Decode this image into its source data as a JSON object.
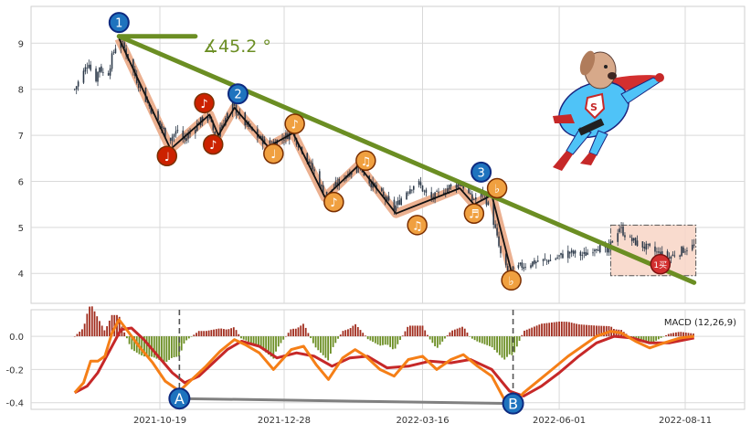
{
  "chart_data": [
    {
      "type": "candlestick",
      "panel": "price",
      "title": "",
      "xlabel": "",
      "ylabel": "",
      "ylim": [
        3.35,
        9.8
      ],
      "yticks": [
        4,
        5,
        6,
        7,
        8,
        9
      ],
      "grid": true,
      "candle_color": "#2d3a4a",
      "price_path": [
        [
          "2021-09-01",
          8.0
        ],
        [
          "2021-09-05",
          8.3
        ],
        [
          "2021-09-09",
          8.6
        ],
        [
          "2021-09-12",
          8.1
        ],
        [
          "2021-09-15",
          8.5
        ],
        [
          "2021-09-19",
          8.2
        ],
        [
          "2021-09-22",
          8.7
        ],
        [
          "2021-09-26",
          9.15
        ],
        [
          "2021-10-01",
          8.7
        ],
        [
          "2021-10-06",
          8.2
        ],
        [
          "2021-10-12",
          7.7
        ],
        [
          "2021-10-18",
          7.3
        ],
        [
          "2021-10-24",
          6.9
        ],
        [
          "2021-10-29",
          7.1
        ],
        [
          "2021-11-02",
          6.9
        ],
        [
          "2021-11-08",
          7.2
        ],
        [
          "2021-11-15",
          7.45
        ],
        [
          "2021-11-19",
          7.0
        ],
        [
          "2021-11-24",
          7.3
        ],
        [
          "2021-11-29",
          7.65
        ],
        [
          "2021-12-05",
          7.3
        ],
        [
          "2021-12-12",
          7.0
        ],
        [
          "2021-12-19",
          6.8
        ],
        [
          "2021-12-25",
          6.9
        ],
        [
          "2022-01-01",
          7.05
        ],
        [
          "2022-01-07",
          6.7
        ],
        [
          "2022-01-14",
          6.2
        ],
        [
          "2022-01-20",
          5.7
        ],
        [
          "2022-01-26",
          5.9
        ],
        [
          "2022-02-01",
          6.15
        ],
        [
          "2022-02-08",
          6.35
        ],
        [
          "2022-02-14",
          6.0
        ],
        [
          "2022-02-21",
          5.7
        ],
        [
          "2022-02-28",
          5.4
        ],
        [
          "2022-03-06",
          5.75
        ],
        [
          "2022-03-13",
          6.0
        ],
        [
          "2022-03-20",
          5.6
        ],
        [
          "2022-03-26",
          5.75
        ],
        [
          "2022-04-01",
          5.9
        ],
        [
          "2022-04-07",
          5.95
        ],
        [
          "2022-04-13",
          5.6
        ],
        [
          "2022-04-19",
          5.75
        ],
        [
          "2022-04-24",
          5.3
        ],
        [
          "2022-04-29",
          4.4
        ],
        [
          "2022-05-03",
          4.0
        ],
        [
          "2022-05-10",
          4.15
        ],
        [
          "2022-05-18",
          4.25
        ],
        [
          "2022-05-28",
          4.3
        ],
        [
          "2022-06-06",
          4.45
        ],
        [
          "2022-06-15",
          4.4
        ],
        [
          "2022-06-22",
          4.6
        ],
        [
          "2022-06-28",
          4.45
        ],
        [
          "2022-07-02",
          4.8
        ],
        [
          "2022-07-05",
          5.0
        ],
        [
          "2022-07-10",
          4.75
        ],
        [
          "2022-07-18",
          4.6
        ],
        [
          "2022-07-26",
          4.45
        ],
        [
          "2022-08-02",
          4.35
        ],
        [
          "2022-08-09",
          4.5
        ],
        [
          "2022-08-16",
          4.6
        ]
      ],
      "wave_path": [
        [
          "2021-09-26",
          9.1
        ],
        [
          "2021-10-25",
          6.7
        ],
        [
          "2021-11-16",
          7.45
        ],
        [
          "2021-11-21",
          7.0
        ],
        [
          "2021-11-30",
          7.6
        ],
        [
          "2021-12-19",
          6.75
        ],
        [
          "2022-01-02",
          7.05
        ],
        [
          "2022-01-20",
          5.65
        ],
        [
          "2022-02-08",
          6.35
        ],
        [
          "2022-03-01",
          5.3
        ],
        [
          "2022-04-06",
          5.85
        ],
        [
          "2022-04-14",
          5.5
        ],
        [
          "2022-04-24",
          5.7
        ],
        [
          "2022-05-05",
          4.05
        ]
      ],
      "trendline": {
        "from": [
          "2021-09-26",
          9.15
        ],
        "to": [
          "2022-08-16",
          3.8
        ],
        "color": "#6b8e23",
        "angle_label": "∡45.2 °"
      },
      "horizontal_segment": {
        "from": [
          "2021-09-26",
          9.15
        ],
        "to": [
          "2021-11-08",
          9.15
        ]
      },
      "wave_labels": [
        {
          "label": "1",
          "x": "2021-09-26",
          "y": 9.45,
          "color": "#1e73be"
        },
        {
          "label": "2",
          "x": "2021-12-02",
          "y": 7.9,
          "color": "#1e73be"
        },
        {
          "label": "3",
          "x": "2022-04-18",
          "y": 6.2,
          "color": "#1e73be"
        }
      ],
      "note_markers": [
        {
          "glyph": "♩",
          "x": "2021-10-23",
          "y": 6.55,
          "color": "#cc2200"
        },
        {
          "glyph": "♪",
          "x": "2021-11-13",
          "y": 7.7,
          "color": "#cc2200"
        },
        {
          "glyph": "♪",
          "x": "2021-11-18",
          "y": 6.8,
          "color": "#cc2200"
        },
        {
          "glyph": "♩",
          "x": "2021-12-22",
          "y": 6.6,
          "color": "#f0a040"
        },
        {
          "glyph": "♪",
          "x": "2022-01-03",
          "y": 7.25,
          "color": "#f0a040"
        },
        {
          "glyph": "♪",
          "x": "2022-01-25",
          "y": 5.55,
          "color": "#f0a040"
        },
        {
          "glyph": "♫",
          "x": "2022-02-12",
          "y": 6.45,
          "color": "#f0a040"
        },
        {
          "glyph": "♫",
          "x": "2022-03-13",
          "y": 5.05,
          "color": "#f0a040"
        },
        {
          "glyph": "♬",
          "x": "2022-04-14",
          "y": 5.3,
          "color": "#f0a040"
        },
        {
          "glyph": "♭",
          "x": "2022-04-27",
          "y": 5.85,
          "color": "#f0a040"
        },
        {
          "glyph": "♭",
          "x": "2022-05-05",
          "y": 3.85,
          "color": "#f0a040"
        }
      ],
      "box": {
        "from": [
          "2022-06-30",
          5.05
        ],
        "to": [
          "2022-08-17",
          3.95
        ]
      },
      "box_marker": {
        "label": "1买",
        "x": "2022-07-28",
        "y": 4.2
      },
      "mascot": "superhero-dog"
    },
    {
      "type": "macd",
      "panel": "indicator",
      "label": "MACD (12,26,9)",
      "ylim": [
        -0.44,
        0.16
      ],
      "yticks": [
        0.0,
        -0.2,
        -0.4
      ],
      "grid": true,
      "xticks": [
        "2021-10-19",
        "2021-12-28",
        "2022-03-16",
        "2022-06-01",
        "2022-08-11"
      ],
      "macd_color": "#f57f17",
      "signal_color": "#c62828",
      "hist_pos_color": "#a12d1e",
      "hist_neg_color": "#6b8e23",
      "macd_line": [
        [
          "2021-09-01",
          -0.34
        ],
        [
          "2021-09-06",
          -0.28
        ],
        [
          "2021-09-10",
          -0.15
        ],
        [
          "2021-09-14",
          -0.15
        ],
        [
          "2021-09-18",
          -0.12
        ],
        [
          "2021-09-22",
          0.02
        ],
        [
          "2021-09-26",
          0.1
        ],
        [
          "2021-10-01",
          0.03
        ],
        [
          "2021-10-08",
          -0.07
        ],
        [
          "2021-10-15",
          -0.16
        ],
        [
          "2021-10-22",
          -0.27
        ],
        [
          "2021-10-30",
          -0.33
        ],
        [
          "2021-11-06",
          -0.26
        ],
        [
          "2021-11-14",
          -0.18
        ],
        [
          "2021-11-22",
          -0.09
        ],
        [
          "2021-11-30",
          -0.02
        ],
        [
          "2021-12-06",
          -0.05
        ],
        [
          "2021-12-14",
          -0.1
        ],
        [
          "2021-12-22",
          -0.2
        ],
        [
          "2022-01-01",
          -0.08
        ],
        [
          "2022-01-08",
          -0.06
        ],
        [
          "2022-01-15",
          -0.17
        ],
        [
          "2022-01-22",
          -0.26
        ],
        [
          "2022-01-30",
          -0.13
        ],
        [
          "2022-02-06",
          -0.08
        ],
        [
          "2022-02-12",
          -0.12
        ],
        [
          "2022-02-20",
          -0.2
        ],
        [
          "2022-02-28",
          -0.24
        ],
        [
          "2022-03-08",
          -0.14
        ],
        [
          "2022-03-16",
          -0.12
        ],
        [
          "2022-03-24",
          -0.2
        ],
        [
          "2022-04-01",
          -0.14
        ],
        [
          "2022-04-08",
          -0.11
        ],
        [
          "2022-04-16",
          -0.18
        ],
        [
          "2022-04-24",
          -0.24
        ],
        [
          "2022-05-01",
          -0.38
        ],
        [
          "2022-05-06",
          -0.41
        ],
        [
          "2022-05-12",
          -0.34
        ],
        [
          "2022-05-20",
          -0.27
        ],
        [
          "2022-05-28",
          -0.2
        ],
        [
          "2022-06-06",
          -0.12
        ],
        [
          "2022-06-14",
          -0.06
        ],
        [
          "2022-06-22",
          0.0
        ],
        [
          "2022-06-30",
          0.03
        ],
        [
          "2022-07-06",
          0.02
        ],
        [
          "2022-07-14",
          -0.03
        ],
        [
          "2022-07-22",
          -0.07
        ],
        [
          "2022-07-30",
          -0.04
        ],
        [
          "2022-08-08",
          -0.01
        ],
        [
          "2022-08-16",
          0.0
        ]
      ],
      "signal_line": [
        [
          "2021-09-01",
          -0.34
        ],
        [
          "2021-09-08",
          -0.3
        ],
        [
          "2021-09-14",
          -0.22
        ],
        [
          "2021-09-20",
          -0.1
        ],
        [
          "2021-09-27",
          0.04
        ],
        [
          "2021-10-03",
          0.05
        ],
        [
          "2021-10-10",
          -0.02
        ],
        [
          "2021-10-18",
          -0.12
        ],
        [
          "2021-10-26",
          -0.22
        ],
        [
          "2021-11-02",
          -0.28
        ],
        [
          "2021-11-10",
          -0.24
        ],
        [
          "2021-11-18",
          -0.16
        ],
        [
          "2021-11-26",
          -0.08
        ],
        [
          "2021-12-04",
          -0.03
        ],
        [
          "2021-12-14",
          -0.06
        ],
        [
          "2021-12-24",
          -0.13
        ],
        [
          "2022-01-04",
          -0.1
        ],
        [
          "2022-01-14",
          -0.12
        ],
        [
          "2022-01-24",
          -0.18
        ],
        [
          "2022-02-03",
          -0.13
        ],
        [
          "2022-02-13",
          -0.12
        ],
        [
          "2022-02-24",
          -0.19
        ],
        [
          "2022-03-08",
          -0.18
        ],
        [
          "2022-03-20",
          -0.15
        ],
        [
          "2022-04-01",
          -0.16
        ],
        [
          "2022-04-12",
          -0.14
        ],
        [
          "2022-04-24",
          -0.2
        ],
        [
          "2022-05-04",
          -0.33
        ],
        [
          "2022-05-12",
          -0.36
        ],
        [
          "2022-05-22",
          -0.3
        ],
        [
          "2022-06-01",
          -0.22
        ],
        [
          "2022-06-12",
          -0.12
        ],
        [
          "2022-06-22",
          -0.04
        ],
        [
          "2022-07-02",
          0.0
        ],
        [
          "2022-07-12",
          -0.01
        ],
        [
          "2022-07-22",
          -0.04
        ],
        [
          "2022-08-02",
          -0.04
        ],
        [
          "2022-08-16",
          -0.01
        ]
      ],
      "divergence": {
        "A": {
          "label": "A",
          "x": "2021-10-30",
          "y": -0.375
        },
        "B": {
          "label": "B",
          "x": "2022-05-06",
          "y": -0.405
        },
        "line_color": "#808080"
      },
      "vertical_markers": [
        "2021-10-30",
        "2022-05-06"
      ]
    }
  ]
}
